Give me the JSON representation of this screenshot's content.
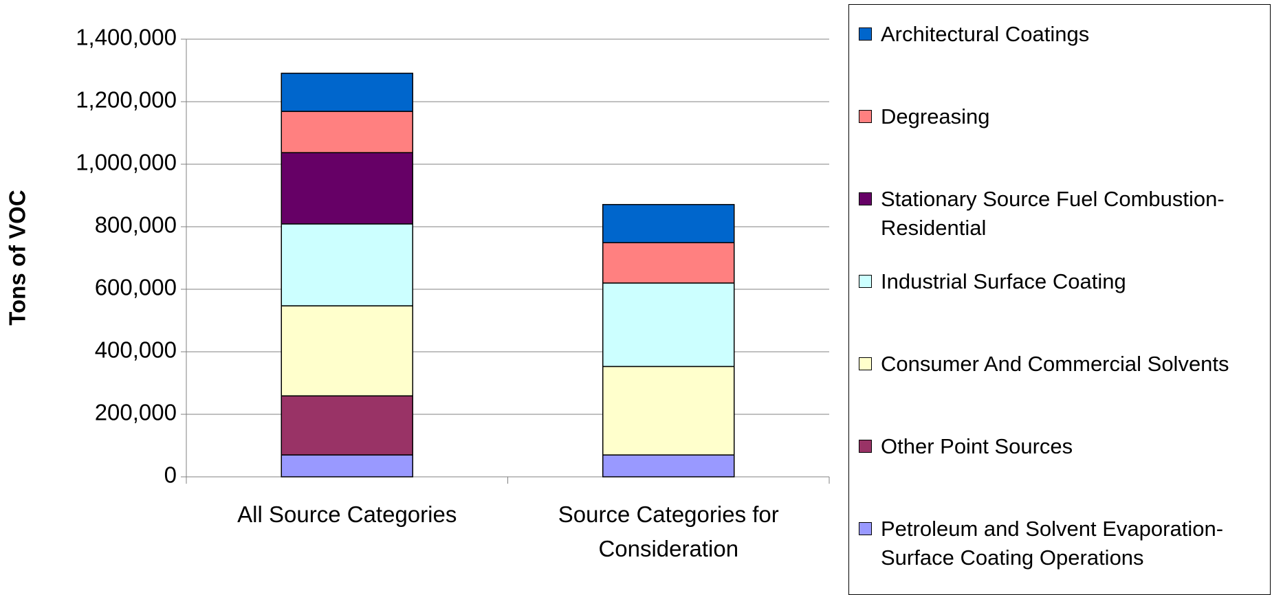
{
  "chart_data": {
    "type": "stacked_bar",
    "y_label": "Tons of VOC",
    "categories": [
      "All Source Categories",
      "Source Categories for Consideration"
    ],
    "series": [
      {
        "name": "Petroleum and Solvent Evaporation-Surface Coating Operations",
        "color": "#9999ff",
        "values": [
          70000,
          70000
        ]
      },
      {
        "name": "Other Point Sources",
        "color": "#993366",
        "values": [
          189000,
          0
        ]
      },
      {
        "name": "Consumer And Commercial Solvents",
        "color": "#ffffcc",
        "values": [
          288000,
          283000
        ]
      },
      {
        "name": "Industrial Surface Coating",
        "color": "#ccffff",
        "values": [
          262000,
          267000
        ]
      },
      {
        "name": "Stationary Source Fuel Combustion-Residential",
        "color": "#660066",
        "values": [
          228000,
          0
        ]
      },
      {
        "name": "Degreasing",
        "color": "#ff8080",
        "values": [
          132000,
          129000
        ]
      },
      {
        "name": "Architectural Coatings",
        "color": "#0066cc",
        "values": [
          122000,
          122000
        ]
      }
    ],
    "ylim": [
      0,
      1400000
    ],
    "yticks": [
      0,
      {
        "value": 200000,
        "label": "200,000"
      },
      {
        "value": 400000,
        "label": "400,000"
      },
      {
        "value": 600000,
        "label": "600,000"
      },
      {
        "value": 800000,
        "label": "800,000"
      },
      {
        "value": 1000000,
        "label": "1,000,000"
      },
      {
        "value": 1200000,
        "label": "1,200,000"
      },
      {
        "value": 1400000,
        "label": "1,400,000"
      }
    ],
    "grid": true
  }
}
